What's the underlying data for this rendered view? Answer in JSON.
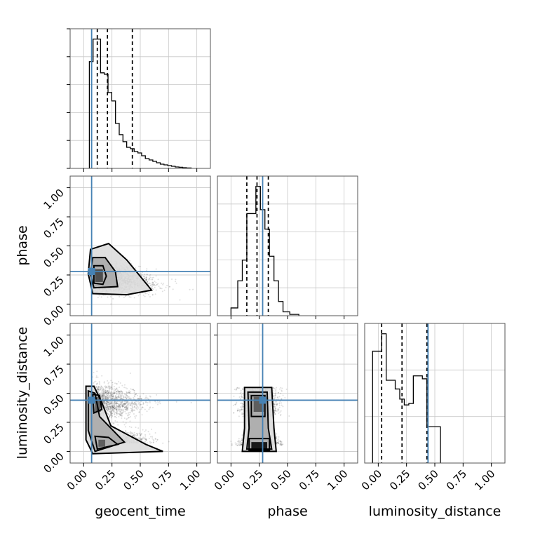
{
  "chart_data": {
    "type": "corner",
    "parameters": [
      "geocent_time",
      "phase",
      "luminosity_distance"
    ],
    "axis_range": [
      0.0,
      1.0
    ],
    "tick_labels": [
      "0.00",
      "0.25",
      "0.50",
      "0.75",
      "1.00"
    ],
    "grid": true,
    "truth_values": {
      "geocent_time": 0.07,
      "phase": 0.28,
      "luminosity_distance": 0.44
    },
    "quantiles": {
      "geocent_time": [
        0.12,
        0.21,
        0.43
      ],
      "phase": [
        0.14,
        0.23,
        0.33
      ],
      "luminosity_distance": [
        0.03,
        0.21,
        0.43
      ]
    },
    "histograms": {
      "geocent_time": {
        "bin_edges": [
          0.05,
          0.083,
          0.116,
          0.149,
          0.182,
          0.215,
          0.248,
          0.281,
          0.314,
          0.347,
          0.38,
          0.413,
          0.446,
          0.479,
          0.512,
          0.545,
          0.578,
          0.611,
          0.644,
          0.677,
          0.71,
          0.743,
          0.776,
          0.809,
          0.842,
          0.875,
          0.908,
          0.95
        ],
        "counts": [
          0.76,
          0.92,
          0.92,
          0.68,
          0.67,
          0.54,
          0.48,
          0.32,
          0.24,
          0.19,
          0.15,
          0.14,
          0.12,
          0.11,
          0.09,
          0.07,
          0.06,
          0.05,
          0.04,
          0.03,
          0.025,
          0.02,
          0.015,
          0.01,
          0.008,
          0.005,
          0.003
        ]
      },
      "phase": {
        "bin_edges": [
          0.0,
          0.06,
          0.1,
          0.14,
          0.18,
          0.22,
          0.26,
          0.3,
          0.34,
          0.38,
          0.42,
          0.46,
          0.52,
          0.6
        ],
        "counts": [
          0.06,
          0.27,
          0.43,
          0.79,
          0.79,
          1.0,
          0.82,
          0.67,
          0.46,
          0.27,
          0.11,
          0.03,
          0.01
        ]
      },
      "luminosity_distance": {
        "bin_edges": [
          -0.05,
          -0.01,
          0.03,
          0.07,
          0.11,
          0.15,
          0.19,
          0.23,
          0.27,
          0.31,
          0.35,
          0.39,
          0.43,
          0.47,
          0.51,
          0.55
        ],
        "counts": [
          0.77,
          0.77,
          0.89,
          0.57,
          0.57,
          0.51,
          0.44,
          0.4,
          0.41,
          0.6,
          0.6,
          0.58,
          0.25,
          0.25,
          0.25
        ]
      }
    },
    "density_peaks": {
      "phase_vs_geocent_time": {
        "x": 0.14,
        "y": 0.25
      },
      "luminosity_distance_vs_geocent_time": [
        {
          "x": 0.13,
          "y": 0.4
        },
        {
          "x": 0.16,
          "y": 0.07
        }
      ],
      "luminosity_distance_vs_phase": [
        {
          "x": 0.25,
          "y": 0.42
        },
        {
          "x": 0.26,
          "y": 0.05
        }
      ]
    }
  }
}
